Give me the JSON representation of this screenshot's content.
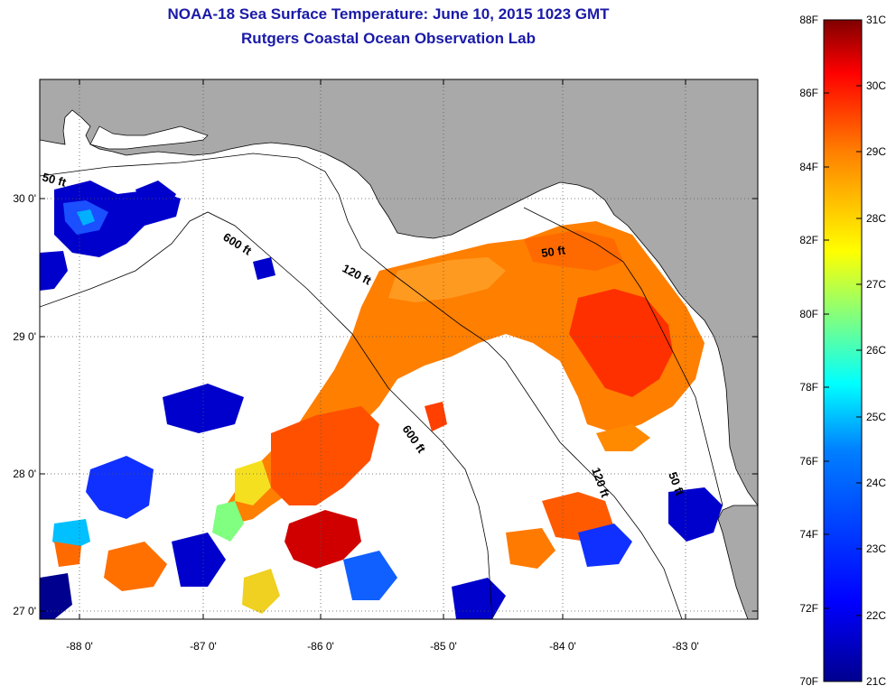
{
  "header": {
    "title": "NOAA-18 Sea Surface Temperature:  June 10, 2015 1023 GMT",
    "subtitle": "Rutgers Coastal Ocean Observation Lab"
  },
  "map": {
    "lon_range": [
      -88.33,
      -82.5
    ],
    "lat_range": [
      26.95,
      30.85
    ],
    "lon_ticks": [
      "-88 0'",
      "-87 0'",
      "-86 0'",
      "-85 0'",
      "-84 0'",
      "-83 0'"
    ],
    "lat_ticks": [
      "30 0'",
      "29 0'",
      "28 0'",
      "27 0'"
    ],
    "land_color": "#a9a9a9",
    "ocean_color": "#ffffff",
    "grid": "dotted",
    "contour_labels": [
      "50 ft",
      "600 ft",
      "120 ft",
      "50 ft",
      "600 ft",
      "120 ft",
      "50 ft"
    ]
  },
  "colorbar": {
    "left_labels": [
      "88F",
      "86F",
      "84F",
      "82F",
      "80F",
      "78F",
      "76F",
      "74F",
      "72F",
      "70F"
    ],
    "right_labels": [
      "31C",
      "30C",
      "29C",
      "28C",
      "27C",
      "26C",
      "25C",
      "24C",
      "23C",
      "22C",
      "21C"
    ],
    "colors": [
      "#800000",
      "#ff0000",
      "#ff8000",
      "#ffff00",
      "#80ff80",
      "#00ffff",
      "#0080ff",
      "#0000ff",
      "#00008f"
    ]
  }
}
